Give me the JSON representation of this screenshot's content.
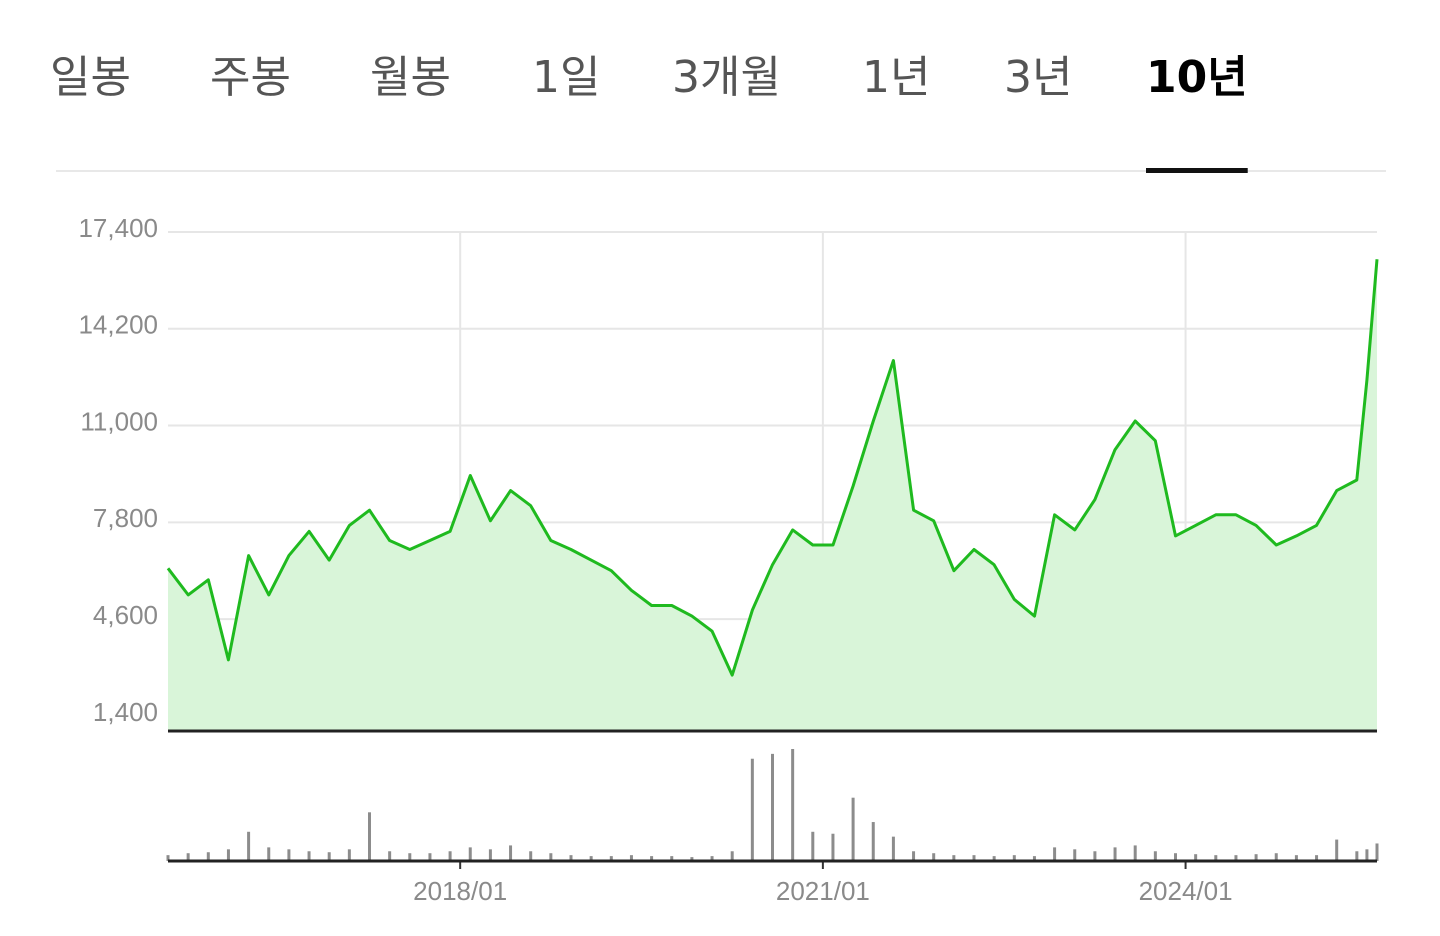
{
  "tabs": [
    "일봉",
    "주봉",
    "월봉",
    "1일",
    "3개월",
    "1년",
    "3년",
    "10년"
  ],
  "selected_tab": 7,
  "chart_data": [
    {
      "type": "line",
      "color": "#1fba1f",
      "fill": "#d9f5d9",
      "grid": true,
      "x": [
        "2015/08",
        "2015/10",
        "2015/12",
        "2016/02",
        "2016/04",
        "2016/06",
        "2016/08",
        "2016/10",
        "2016/12",
        "2017/02",
        "2017/04",
        "2017/06",
        "2017/08",
        "2017/10",
        "2017/12",
        "2018/02",
        "2018/04",
        "2018/06",
        "2018/08",
        "2018/10",
        "2018/12",
        "2019/02",
        "2019/04",
        "2019/06",
        "2019/08",
        "2019/10",
        "2019/12",
        "2020/02",
        "2020/04",
        "2020/06",
        "2020/08",
        "2020/10",
        "2020/12",
        "2021/02",
        "2021/04",
        "2021/06",
        "2021/08",
        "2021/10",
        "2021/12",
        "2022/02",
        "2022/04",
        "2022/06",
        "2022/08",
        "2022/10",
        "2022/12",
        "2023/02",
        "2023/04",
        "2023/06",
        "2023/08",
        "2023/10",
        "2023/12",
        "2024/02",
        "2024/04",
        "2024/06",
        "2024/08",
        "2024/10",
        "2024/12",
        "2025/02",
        "2025/04",
        "2025/06",
        "2025/07",
        "2025/08"
      ],
      "values": [
        6280,
        5400,
        5900,
        3250,
        6700,
        5400,
        6700,
        7500,
        6550,
        7700,
        8200,
        7200,
        6900,
        7200,
        7500,
        9350,
        7850,
        8850,
        8350,
        7200,
        6900,
        6550,
        6200,
        5550,
        5050,
        5050,
        4700,
        4200,
        2750,
        4900,
        6400,
        7550,
        7050,
        7050,
        9000,
        11150,
        13150,
        8200,
        7850,
        6200,
        6900,
        6400,
        5250,
        4700,
        8050,
        7550,
        8550,
        10200,
        11150,
        10500,
        7350,
        7700,
        8050,
        8050,
        7700,
        7050,
        7350,
        7700,
        8850,
        9200,
        12500,
        16500
      ],
      "xlim": [
        "2015/08",
        "2025/08"
      ],
      "xticks": [
        "2018/01",
        "2021/01",
        "2024/01"
      ],
      "ylim": [
        900,
        17400
      ],
      "yticks": [
        {
          "value": 1400,
          "label": "1,400"
        },
        {
          "value": 4600,
          "label": "4,600"
        },
        {
          "value": 7800,
          "label": "7,800"
        },
        {
          "value": 11000,
          "label": "11,000"
        },
        {
          "value": 14200,
          "label": "14,200"
        },
        {
          "value": 17400,
          "label": "17,400"
        }
      ]
    },
    {
      "type": "bar",
      "color": "#8c8c8c",
      "x": [
        "2015/08",
        "2015/10",
        "2015/12",
        "2016/02",
        "2016/04",
        "2016/06",
        "2016/08",
        "2016/10",
        "2016/12",
        "2017/02",
        "2017/04",
        "2017/06",
        "2017/08",
        "2017/10",
        "2017/12",
        "2018/02",
        "2018/04",
        "2018/06",
        "2018/08",
        "2018/10",
        "2018/12",
        "2019/02",
        "2019/04",
        "2019/06",
        "2019/08",
        "2019/10",
        "2019/12",
        "2020/02",
        "2020/04",
        "2020/06",
        "2020/08",
        "2020/10",
        "2020/12",
        "2021/02",
        "2021/04",
        "2021/06",
        "2021/08",
        "2021/10",
        "2021/12",
        "2022/02",
        "2022/04",
        "2022/06",
        "2022/08",
        "2022/10",
        "2022/12",
        "2023/02",
        "2023/04",
        "2023/06",
        "2023/08",
        "2023/10",
        "2023/12",
        "2024/02",
        "2024/04",
        "2024/06",
        "2024/08",
        "2024/10",
        "2024/12",
        "2025/02",
        "2025/04",
        "2025/06",
        "2025/07",
        "2025/08"
      ],
      "values": [
        6,
        8,
        9,
        12,
        30,
        14,
        12,
        10,
        9,
        12,
        50,
        10,
        8,
        8,
        10,
        14,
        12,
        16,
        10,
        8,
        6,
        5,
        5,
        6,
        5,
        5,
        4,
        5,
        10,
        105,
        110,
        115,
        30,
        28,
        65,
        40,
        25,
        10,
        8,
        6,
        6,
        5,
        6,
        5,
        14,
        12,
        10,
        14,
        16,
        10,
        8,
        7,
        6,
        6,
        7,
        8,
        6,
        6,
        22,
        10,
        12,
        18
      ]
    }
  ]
}
